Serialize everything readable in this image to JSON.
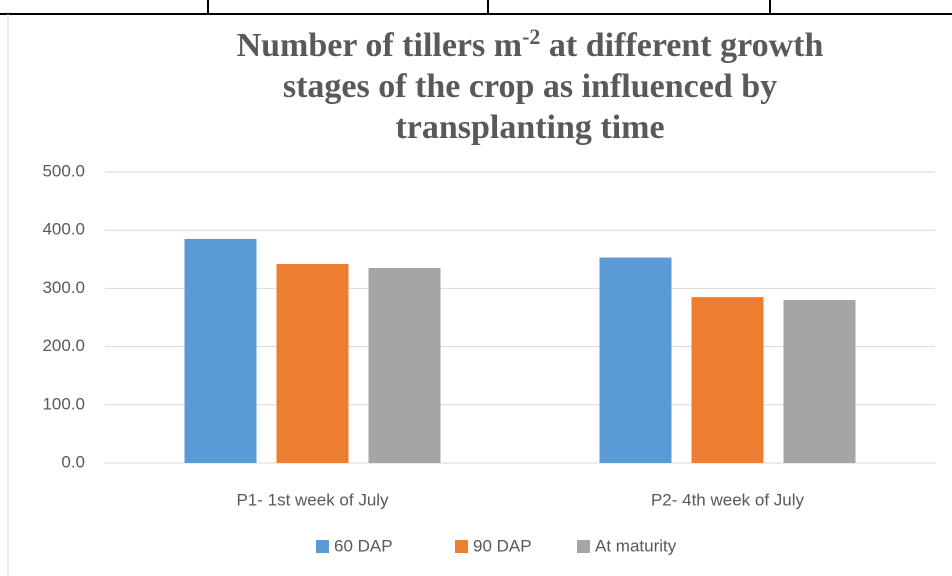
{
  "chart_data": {
    "type": "bar",
    "title": [
      "Number of tillers m",
      "-2",
      " at different growth",
      "stages of the crop as influenced by",
      "transplanting time"
    ],
    "categories": [
      "P1- 1st week of July",
      "P2- 4th week of July"
    ],
    "series": [
      {
        "name": "60 DAP",
        "color": "#5b9bd5",
        "values": [
          385,
          353
        ]
      },
      {
        "name": "90 DAP",
        "color": "#ed7d31",
        "values": [
          342,
          285
        ]
      },
      {
        "name": "At maturity",
        "color": "#a5a5a5",
        "values": [
          335,
          280
        ]
      }
    ],
    "ylim": [
      0,
      500
    ],
    "yticks": [
      {
        "value": 0,
        "label": "0.0"
      },
      {
        "value": 100,
        "label": "100.0"
      },
      {
        "value": 200,
        "label": "200.0"
      },
      {
        "value": 300,
        "label": "300.0"
      },
      {
        "value": 400,
        "label": "400.0"
      },
      {
        "value": 500,
        "label": "500.0"
      }
    ],
    "grid": true,
    "legend": "bottom"
  }
}
